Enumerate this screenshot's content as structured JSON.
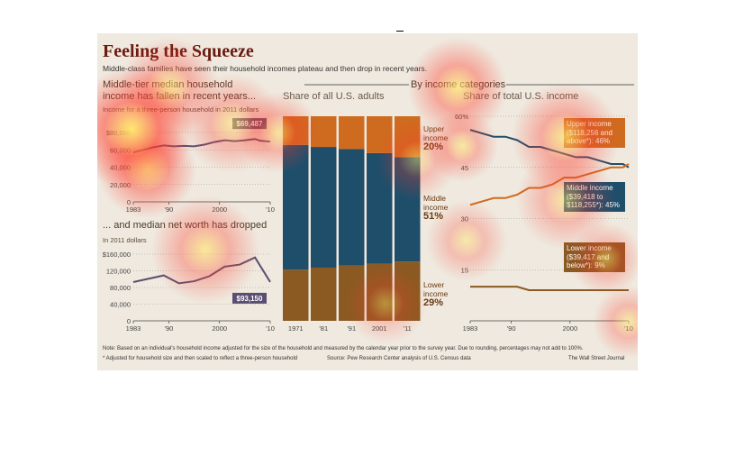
{
  "title": "Feeling the Squeeze",
  "subtitle": "Middle-class families have seen their household incomes plateau and then drop in recent years.",
  "section_heading": "By income categories",
  "note": "Note: Based on an individual's household income adjusted for the size of the household and measured by the calendar year prior to the survey year. Due to rounding, percentages may not add to 100%.",
  "footnote": "* Adjusted for household size and then scaled to reflect a three-person household",
  "source": "Source: Pew Research Center analysis of U.S. Census data",
  "publisher": "The Wall Street Journal",
  "colors": {
    "upper": "#cf6b1f",
    "middle": "#1f4e6b",
    "lower": "#8a5a22",
    "line": "#5a4f72",
    "heat_hot": "#ffe96a",
    "heat_warm": "#ff3a2a"
  },
  "chart_data": [
    {
      "type": "line",
      "title": "Middle-tier median household income has fallen in recent years...",
      "subtitle": "Income for a three-person household in 2011 dollars",
      "x": [
        1983,
        1985,
        1987,
        1989,
        1991,
        1993,
        1995,
        1997,
        1999,
        2001,
        2003,
        2005,
        2007,
        2008,
        2009,
        2010
      ],
      "y": [
        57000,
        60000,
        63000,
        65000,
        64000,
        64500,
        64000,
        66000,
        69000,
        71000,
        70000,
        71000,
        72500,
        70500,
        70000,
        69487
      ],
      "ylim": [
        0,
        80000
      ],
      "yticks": [
        "0",
        "20,000",
        "40,000",
        "60,000",
        "$80,000"
      ],
      "xticks": [
        "1983",
        "'90",
        "2000",
        "'10"
      ],
      "label": "$69,487"
    },
    {
      "type": "line",
      "title": "... and median net worth has dropped",
      "subtitle": "In 2011 dollars",
      "x": [
        1983,
        1989,
        1992,
        1995,
        1998,
        2001,
        2004,
        2007,
        2010
      ],
      "y": [
        93000,
        109000,
        90000,
        95000,
        107000,
        130000,
        135000,
        152000,
        93150
      ],
      "ylim": [
        0,
        160000
      ],
      "yticks": [
        "0",
        "40,000",
        "80,000",
        "120,000",
        "$160,000"
      ],
      "xticks": [
        "1983",
        "'90",
        "2000",
        "'10"
      ],
      "label": "$93,150"
    },
    {
      "type": "bar",
      "title": "Share of all U.S. adults",
      "categories": [
        "1971",
        "'81",
        "'91",
        "2001",
        "'11"
      ],
      "series": [
        {
          "name": "Lower income",
          "values": [
            25,
            26,
            27,
            28,
            29
          ]
        },
        {
          "name": "Middle income",
          "values": [
            61,
            59,
            57,
            54,
            51
          ]
        },
        {
          "name": "Upper income",
          "values": [
            14,
            15,
            16,
            18,
            20
          ]
        }
      ],
      "end_labels": {
        "upper": [
          "Upper",
          "income",
          "20%"
        ],
        "middle": [
          "Middle",
          "income",
          "51%"
        ],
        "lower": [
          "Lower",
          "income",
          "29%"
        ]
      }
    },
    {
      "type": "line",
      "title": "Share of total U.S. income",
      "x": [
        1983,
        1985,
        1987,
        1989,
        1991,
        1993,
        1995,
        1997,
        1999,
        2001,
        2003,
        2005,
        2007,
        2009,
        2010
      ],
      "series": [
        {
          "name": "Middle income",
          "values": [
            56,
            55,
            54,
            54,
            53,
            51,
            51,
            50,
            49,
            48,
            48,
            47,
            46,
            46,
            45
          ]
        },
        {
          "name": "Upper income",
          "values": [
            34,
            35,
            36,
            36,
            37,
            39,
            39,
            40,
            42,
            42,
            43,
            44,
            45,
            45,
            46
          ]
        },
        {
          "name": "Lower income",
          "values": [
            10,
            10,
            10,
            10,
            10,
            9,
            9,
            9,
            9,
            9,
            9,
            9,
            9,
            9,
            9
          ]
        }
      ],
      "ylim": [
        0,
        60
      ],
      "yticks": [
        "15",
        "30",
        "45",
        "60%"
      ],
      "xticks": [
        "1983",
        "'90",
        "2000",
        "'10"
      ],
      "annotations": {
        "upper": "Upper income ($118,256 and above*): 46%",
        "middle": "Middle income ($39,418 to $118,255*): 45%",
        "lower": "Lower income ($39,417 and below*): 9%"
      }
    }
  ]
}
